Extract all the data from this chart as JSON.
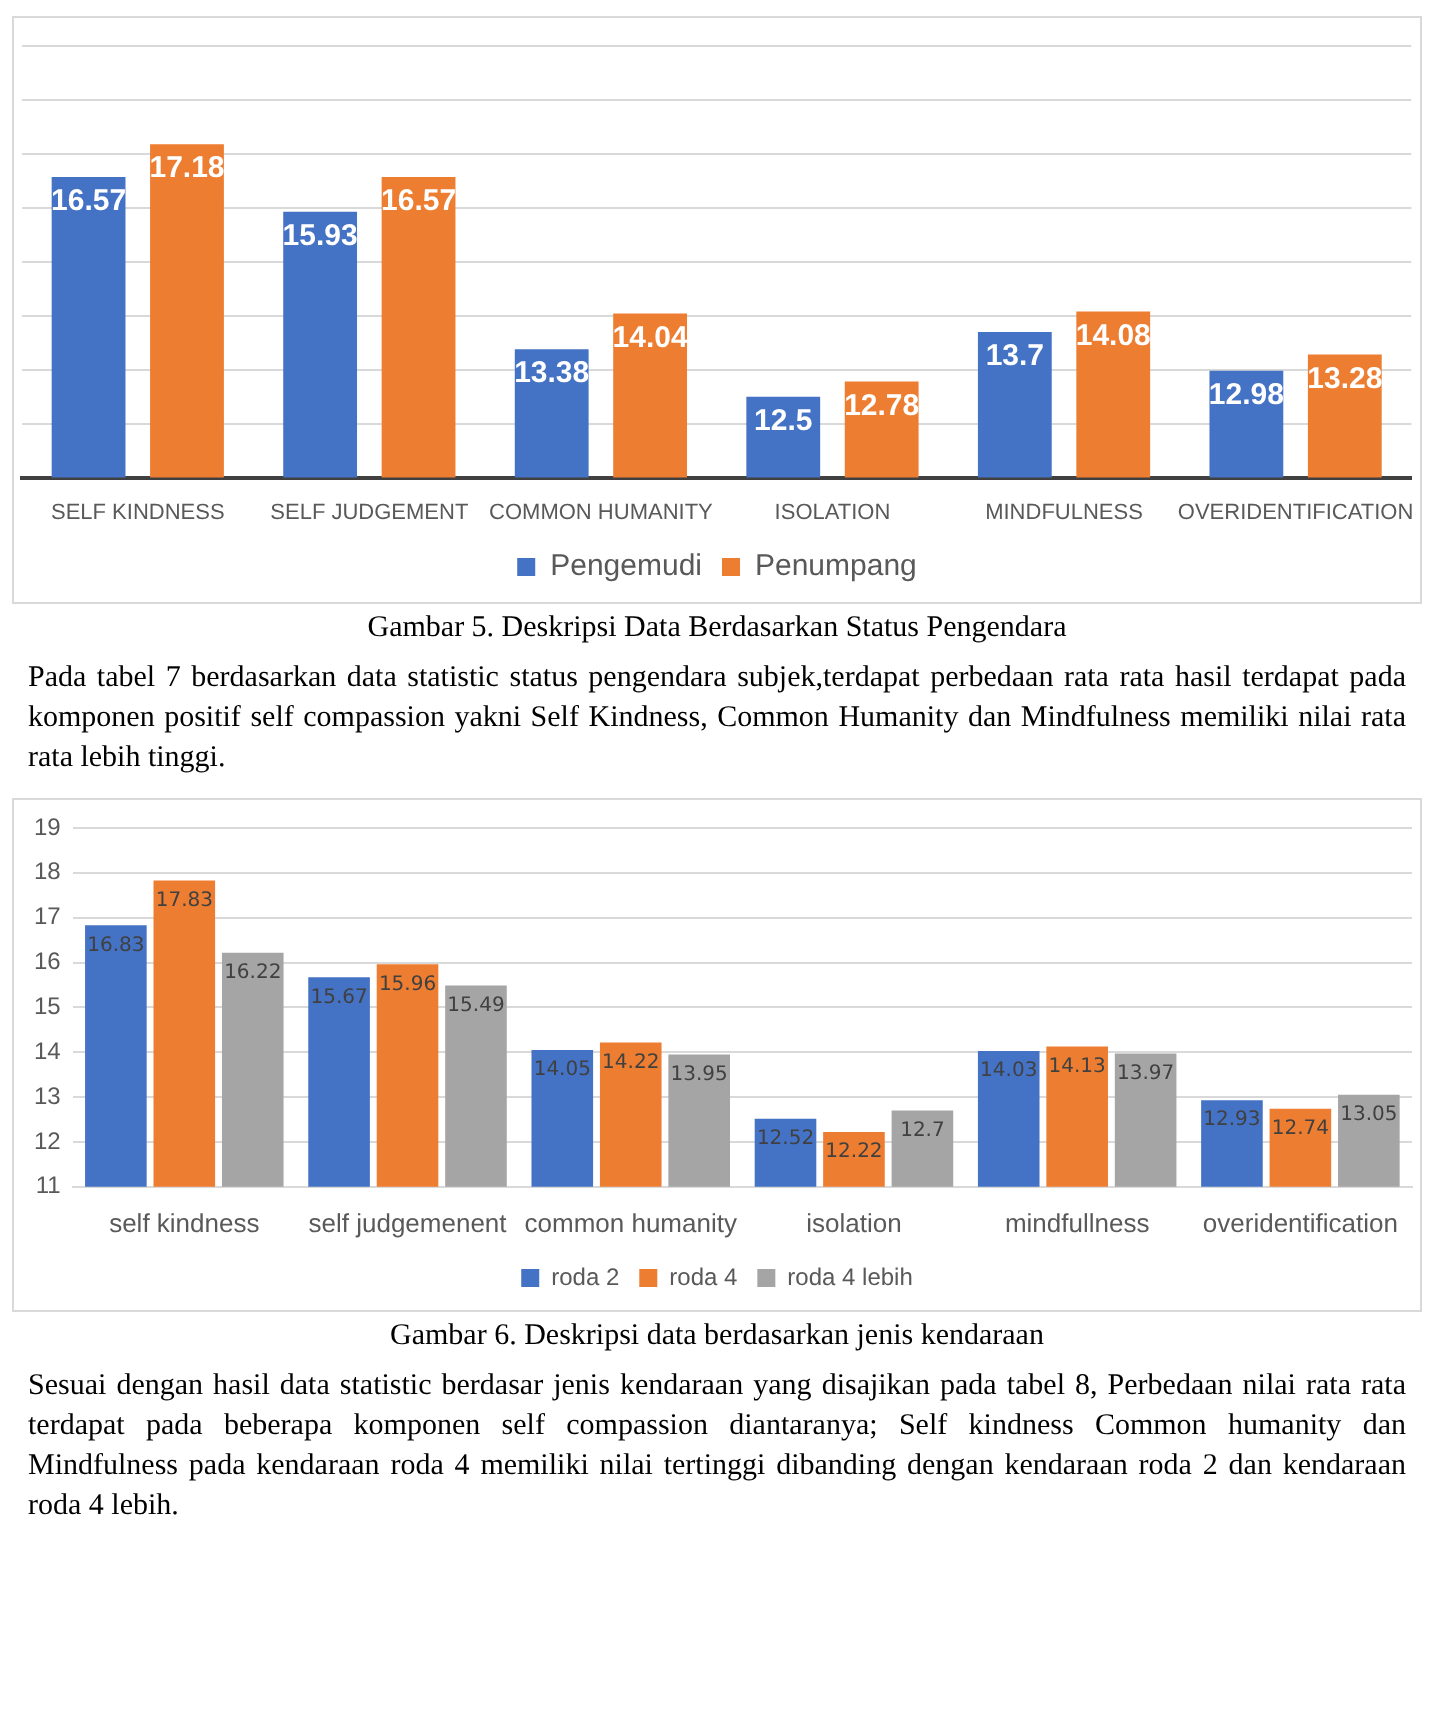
{
  "chart_data": [
    {
      "type": "bar",
      "categories": [
        "SELF KINDNESS",
        "SELF JUDGEMENT",
        "COMMON HUMANITY",
        "ISOLATION",
        "MINDFULNESS",
        "OVERIDENTIFICATION"
      ],
      "series": [
        {
          "name": "Pengemudi",
          "color": "#4472c4",
          "values": [
            16.57,
            15.93,
            13.38,
            12.5,
            13.7,
            12.98
          ]
        },
        {
          "name": "Penumpang",
          "color": "#ed7d31",
          "values": [
            17.18,
            16.57,
            14.04,
            12.78,
            14.08,
            13.28
          ]
        }
      ],
      "ylim": [
        11,
        19
      ],
      "yticks": [
        11,
        12,
        13,
        14,
        15,
        16,
        17,
        18,
        19
      ],
      "tick_labels": "x",
      "grid": "y",
      "legend": "bottom",
      "data_labels": true,
      "annotations": [
        "Gambar 5. Deskripsi Data Berdasarkan Status Pengendara",
        "Pada tabel 7 berdasarkan data statistic status pengendara subjek,terdapat perbedaan rata rata hasil terdapat pada komponen positif self compassion yakni Self Kindness, Common Humanity dan Mindfulness memiliki nilai rata rata lebih tinggi."
      ]
    },
    {
      "type": "bar",
      "categories": [
        "self kindness",
        "self judgemenent",
        "common humanity",
        "isolation",
        "mindfullness",
        "overidentification"
      ],
      "series": [
        {
          "name": "roda 2",
          "color": "#4472c4",
          "values": [
            16.83,
            15.67,
            14.05,
            12.52,
            14.03,
            12.93
          ]
        },
        {
          "name": "roda 4",
          "color": "#ed7d31",
          "values": [
            17.83,
            15.96,
            14.22,
            12.22,
            14.13,
            12.74
          ]
        },
        {
          "name": "roda 4 lebih",
          "color": "#a5a5a5",
          "values": [
            16.22,
            15.49,
            13.95,
            12.7,
            13.97,
            13.05
          ]
        }
      ],
      "ylim": [
        11,
        19
      ],
      "yticks": [
        11,
        12,
        13,
        14,
        15,
        16,
        17,
        18,
        19
      ],
      "grid": "y",
      "legend": "bottom",
      "data_labels": true,
      "annotations": [
        "Gambar 6. Deskripsi data berdasarkan jenis kendaraan",
        "Sesuai dengan hasil data statistic berdasar jenis kendaraan yang disajikan pada tabel 8, Perbedaan nilai rata rata terdapat pada beberapa komponen self compassion diantaranya; Self kindness Common humanity dan Mindfulness pada kendaraan roda 4 memiliki nilai tertinggi dibanding dengan kendaraan roda 2 dan kendaraan roda 4 lebih."
      ]
    }
  ]
}
